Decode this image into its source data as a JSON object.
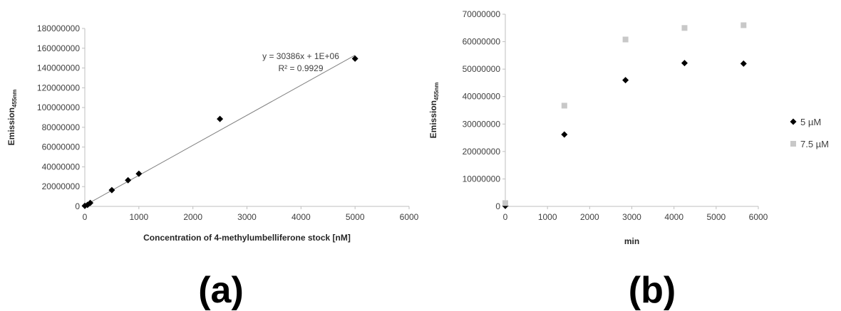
{
  "chart_data": [
    {
      "type": "scatter",
      "panel_label": "(a)",
      "xlabel": "Concentration of 4-methylumbelliferone stock [nM]",
      "ylabel": "Emission",
      "ylabel_subscript": "455nm",
      "xlim": [
        0,
        6000
      ],
      "ylim": [
        0,
        180000000
      ],
      "x_ticks": [
        "0",
        "1000",
        "2000",
        "3000",
        "4000",
        "5000",
        "6000"
      ],
      "y_ticks": [
        "0",
        "20000000",
        "40000000",
        "60000000",
        "80000000",
        "100000000",
        "120000000",
        "140000000",
        "160000000",
        "180000000"
      ],
      "grid": false,
      "series": [
        {
          "color": "#000000",
          "marker": "diamond",
          "points": [
            {
              "x": 0,
              "y": 500000
            },
            {
              "x": 50,
              "y": 1500000
            },
            {
              "x": 100,
              "y": 3500000
            },
            {
              "x": 500,
              "y": 16500000
            },
            {
              "x": 800,
              "y": 26500000
            },
            {
              "x": 1000,
              "y": 33000000
            },
            {
              "x": 2500,
              "y": 88500000
            },
            {
              "x": 5000,
              "y": 149500000
            }
          ]
        }
      ],
      "trendline": {
        "slope": 30386,
        "intercept": 1000000,
        "x_range": [
          0,
          5000
        ],
        "color": "#808080"
      },
      "annotations": {
        "equation": "y = 30386x + 1E+06",
        "r_squared": "R² = 0.9929"
      }
    },
    {
      "type": "scatter",
      "panel_label": "(b)",
      "xlabel": "min",
      "ylabel": "Emission",
      "ylabel_subscript": "455nm",
      "xlim": [
        0,
        6000
      ],
      "ylim": [
        0,
        70000000
      ],
      "x_ticks": [
        "0",
        "1000",
        "2000",
        "3000",
        "4000",
        "5000",
        "6000"
      ],
      "y_ticks": [
        "0",
        "10000000",
        "20000000",
        "30000000",
        "40000000",
        "50000000",
        "60000000",
        "70000000"
      ],
      "grid": false,
      "legend_position": "right",
      "series": [
        {
          "name": "5 µM",
          "color": "#000000",
          "marker": "diamond",
          "points": [
            {
              "x": 0,
              "y": 200000
            },
            {
              "x": 1400,
              "y": 26200000
            },
            {
              "x": 2850,
              "y": 46000000
            },
            {
              "x": 4250,
              "y": 52200000
            },
            {
              "x": 5650,
              "y": 52000000
            }
          ]
        },
        {
          "name": "7.5 µM",
          "color": "#c8c8c8",
          "marker": "square",
          "points": [
            {
              "x": 0,
              "y": 1200000
            },
            {
              "x": 1400,
              "y": 36700000
            },
            {
              "x": 2850,
              "y": 60800000
            },
            {
              "x": 4250,
              "y": 65000000
            },
            {
              "x": 5650,
              "y": 66000000
            }
          ]
        }
      ]
    }
  ]
}
